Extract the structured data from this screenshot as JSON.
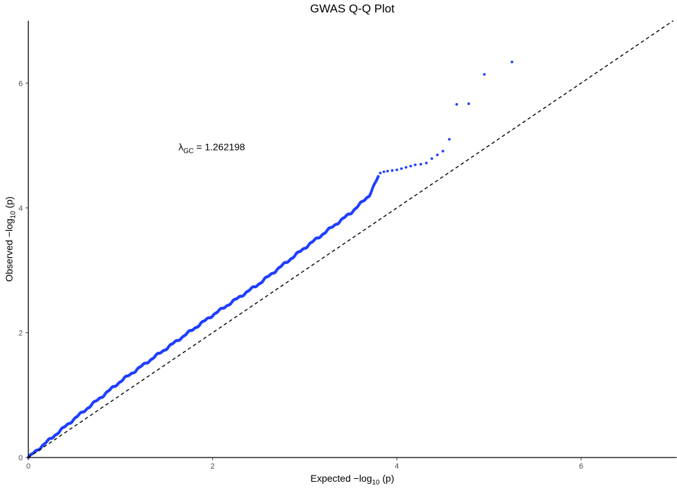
{
  "chart_data": {
    "type": "scatter",
    "title": "GWAS Q-Q Plot",
    "xlabel": {
      "prefix": "Expected −log",
      "sub": "10",
      "suffix": " (p)"
    },
    "ylabel": {
      "prefix": "Observed −log",
      "sub": "10",
      "suffix": " (p)"
    },
    "xlim": [
      0,
      7.0
    ],
    "ylim": [
      0,
      7.0
    ],
    "x_ticks": [
      0,
      2,
      4,
      6
    ],
    "y_ticks": [
      0,
      2,
      4,
      6
    ],
    "grid": false,
    "point_color": "#1f3fff",
    "reference_line": {
      "style": "dashed",
      "color": "#000000",
      "from": [
        0,
        0
      ],
      "to": [
        7.0,
        7.0
      ]
    },
    "annotation": {
      "symbol": "λ",
      "sub": "GC",
      "text": " = 1.262198",
      "x": 1.63,
      "y": 4.98
    },
    "trend": {
      "description_points_x": [
        0,
        0.5,
        1.0,
        1.5,
        2.0,
        2.5,
        3.0,
        3.5,
        3.7,
        3.8
      ],
      "description_points_y": [
        0,
        0.62,
        1.22,
        1.75,
        2.28,
        2.78,
        3.36,
        3.92,
        4.2,
        4.5
      ]
    },
    "tail_points": [
      {
        "x": 3.82,
        "y": 4.56
      },
      {
        "x": 3.86,
        "y": 4.58
      },
      {
        "x": 3.9,
        "y": 4.59
      },
      {
        "x": 3.95,
        "y": 4.6
      },
      {
        "x": 4.0,
        "y": 4.61
      },
      {
        "x": 4.05,
        "y": 4.63
      },
      {
        "x": 4.1,
        "y": 4.65
      },
      {
        "x": 4.15,
        "y": 4.67
      },
      {
        "x": 4.2,
        "y": 4.69
      },
      {
        "x": 4.26,
        "y": 4.7
      },
      {
        "x": 4.32,
        "y": 4.72
      },
      {
        "x": 4.38,
        "y": 4.79
      },
      {
        "x": 4.44,
        "y": 4.85
      },
      {
        "x": 4.5,
        "y": 4.91
      },
      {
        "x": 4.57,
        "y": 5.1
      },
      {
        "x": 4.65,
        "y": 5.66
      },
      {
        "x": 4.78,
        "y": 5.67
      },
      {
        "x": 4.95,
        "y": 6.14
      },
      {
        "x": 5.25,
        "y": 6.34
      }
    ]
  }
}
